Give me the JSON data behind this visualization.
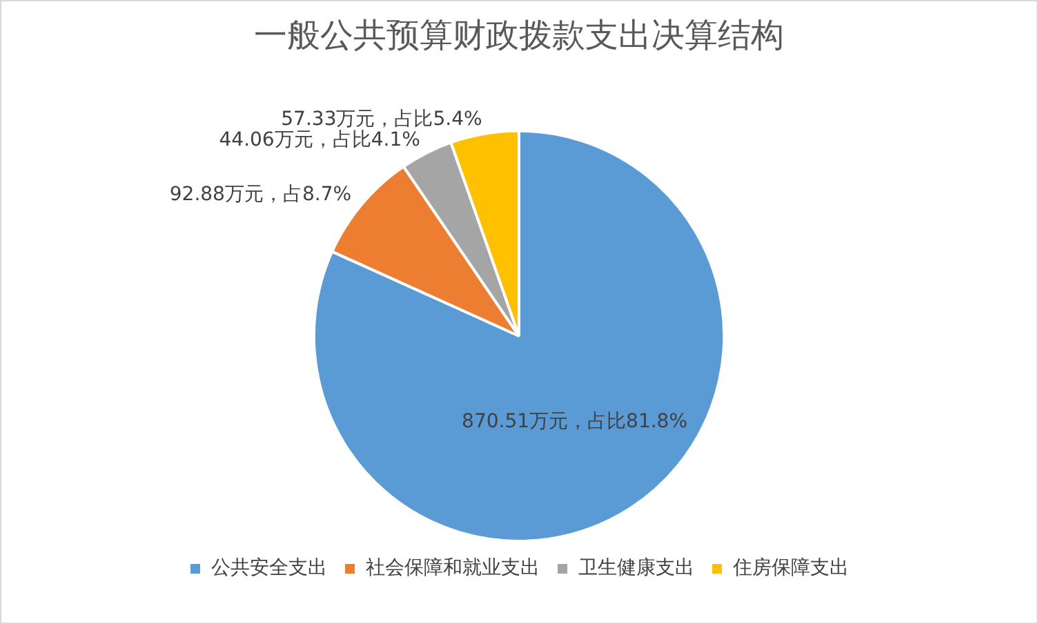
{
  "chart_data": {
    "type": "pie",
    "title": "一般公共预算财政拨款支出决算结构",
    "categories": [
      "公共安全支出",
      "社会保障和就业支出",
      "卫生健康支出",
      "住房保障支出"
    ],
    "values": [
      870.51,
      92.88,
      44.06,
      57.33
    ],
    "colors": [
      "#5b9bd5",
      "#ed7d31",
      "#a5a5a5",
      "#ffc000"
    ],
    "value_labels": [
      "870.51万元，占比81.8%",
      "92.88万元，占8.7%",
      "44.06万元，占比4.1%",
      "57.33万元，占比5.4%"
    ],
    "legend": "bottom"
  }
}
